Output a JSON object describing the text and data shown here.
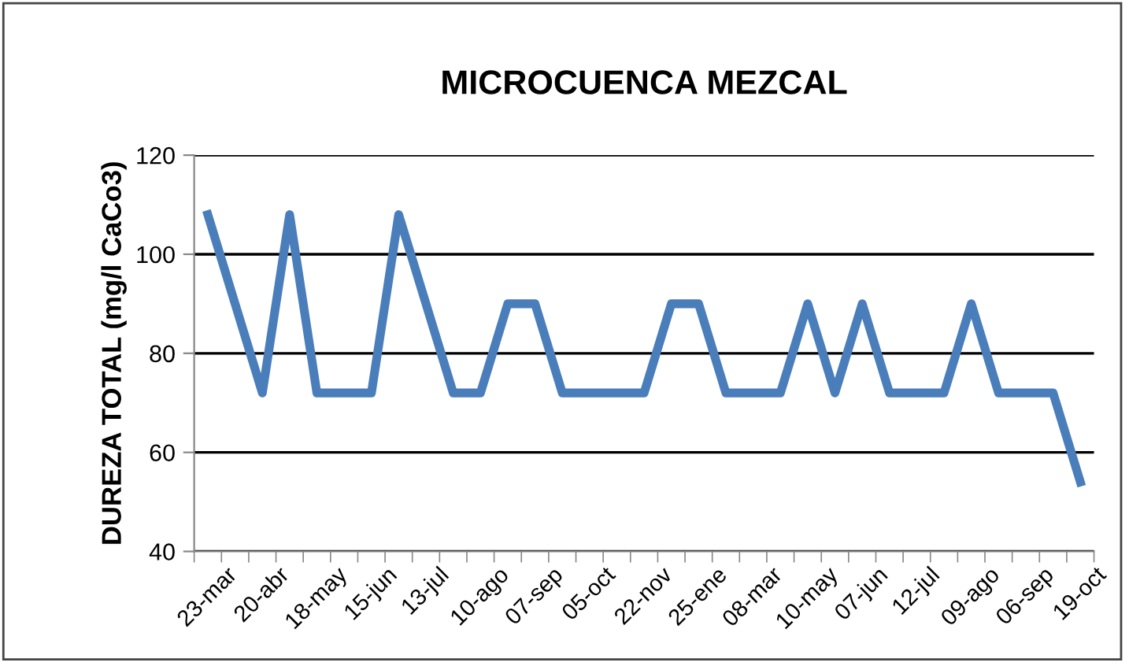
{
  "chart_data": {
    "type": "line",
    "title": "MICROCUENCA MEZCAL",
    "ylabel": "DUREZA TOTAL (mg/l CaCo3)",
    "categories": [
      "23-mar",
      null,
      "20-abr",
      null,
      "18-may",
      null,
      "15-jun",
      null,
      "13-jul",
      null,
      "10-ago",
      null,
      "07-sep",
      null,
      "05-oct",
      null,
      "22-nov",
      null,
      "25-ene",
      null,
      "08-mar",
      null,
      "10-may",
      null,
      "07-jun",
      null,
      "12-jul",
      null,
      "09-ago",
      null,
      "06-sep",
      null,
      "19-oct"
    ],
    "series": [
      {
        "color": "#4a7ebb",
        "values": [
          108,
          90,
          72,
          108,
          72,
          72,
          72,
          108,
          90,
          72,
          72,
          90,
          90,
          72,
          72,
          72,
          72,
          90,
          90,
          72,
          72,
          72,
          90,
          72,
          90,
          72,
          72,
          72,
          90,
          72,
          72,
          72,
          54
        ]
      }
    ],
    "ylim": [
      40,
      120
    ],
    "yticks": [
      40,
      60,
      80,
      100,
      120
    ],
    "grid": "y",
    "marker": "none",
    "line_style": "solid"
  }
}
